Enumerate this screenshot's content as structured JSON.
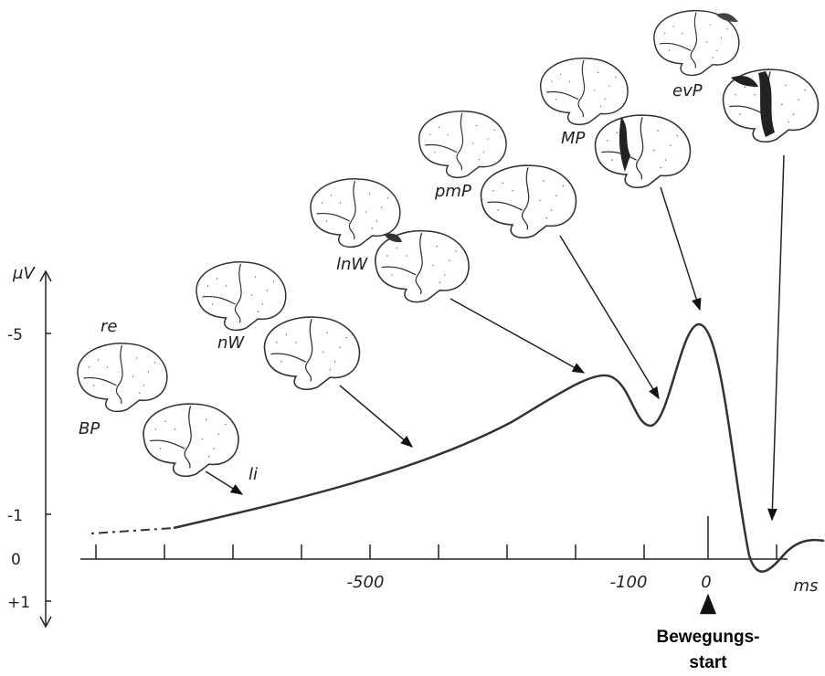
{
  "axis": {
    "y_unit": "μV",
    "y_labels": [
      "-5",
      "-1",
      "0",
      "+1"
    ],
    "x_labels": [
      "-500",
      "-100",
      "0"
    ],
    "x_unit": "ms"
  },
  "brain_labels": {
    "re": "re",
    "bp": "BP",
    "li": "li",
    "nw": "nW",
    "lnw": "lnW",
    "pmp": "pmP",
    "mp": "MP",
    "evp": "evP"
  },
  "movement_start": [
    "Bewegungs-",
    "start"
  ]
}
